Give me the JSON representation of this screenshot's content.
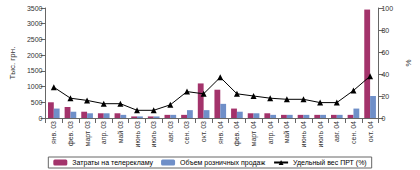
{
  "chart_data": {
    "type": "bar",
    "categories": [
      "янв. 03",
      "фев. 03",
      "март 03",
      "апр. 03",
      "май 03",
      "июнь 03",
      "июль 03",
      "авг. 03",
      "сен. 03",
      "окт. 03",
      "янв. 04",
      "фев. 04",
      "март 04",
      "апр. 04",
      "май 04",
      "июнь 04",
      "июль 04",
      "авг. 04",
      "сен. 04",
      "окт. 04"
    ],
    "series": [
      {
        "name": "Затраты на телерекламу",
        "type": "bar",
        "color": "#a3336b",
        "values": [
          500,
          350,
          200,
          150,
          150,
          50,
          50,
          100,
          100,
          1100,
          900,
          300,
          150,
          150,
          100,
          100,
          100,
          100,
          100,
          3450
        ]
      },
      {
        "name": "Объем розничных продаж",
        "type": "bar",
        "color": "#6f8fc8",
        "values": [
          300,
          200,
          150,
          150,
          100,
          50,
          50,
          100,
          250,
          250,
          450,
          200,
          150,
          100,
          100,
          100,
          100,
          100,
          300,
          700
        ]
      },
      {
        "name": "Удельный вес ПРТ (%)",
        "type": "line",
        "color": "#000000",
        "marker": "triangle",
        "axis": "y2",
        "values": [
          28,
          18,
          16,
          13,
          13,
          7,
          7,
          12,
          24,
          22,
          37,
          22,
          20,
          18,
          17,
          17,
          14,
          14,
          25,
          38
        ]
      }
    ],
    "ylabel": "Тыс. грн.",
    "y2label": "%",
    "ylim": [
      0,
      3500
    ],
    "yticks": [
      0,
      500,
      1000,
      1500,
      2000,
      2500,
      3000,
      3500
    ],
    "y2lim": [
      0,
      100
    ],
    "y2ticks": [
      0,
      20,
      40,
      60,
      80,
      100
    ],
    "legend": "bottom",
    "grid": false
  }
}
